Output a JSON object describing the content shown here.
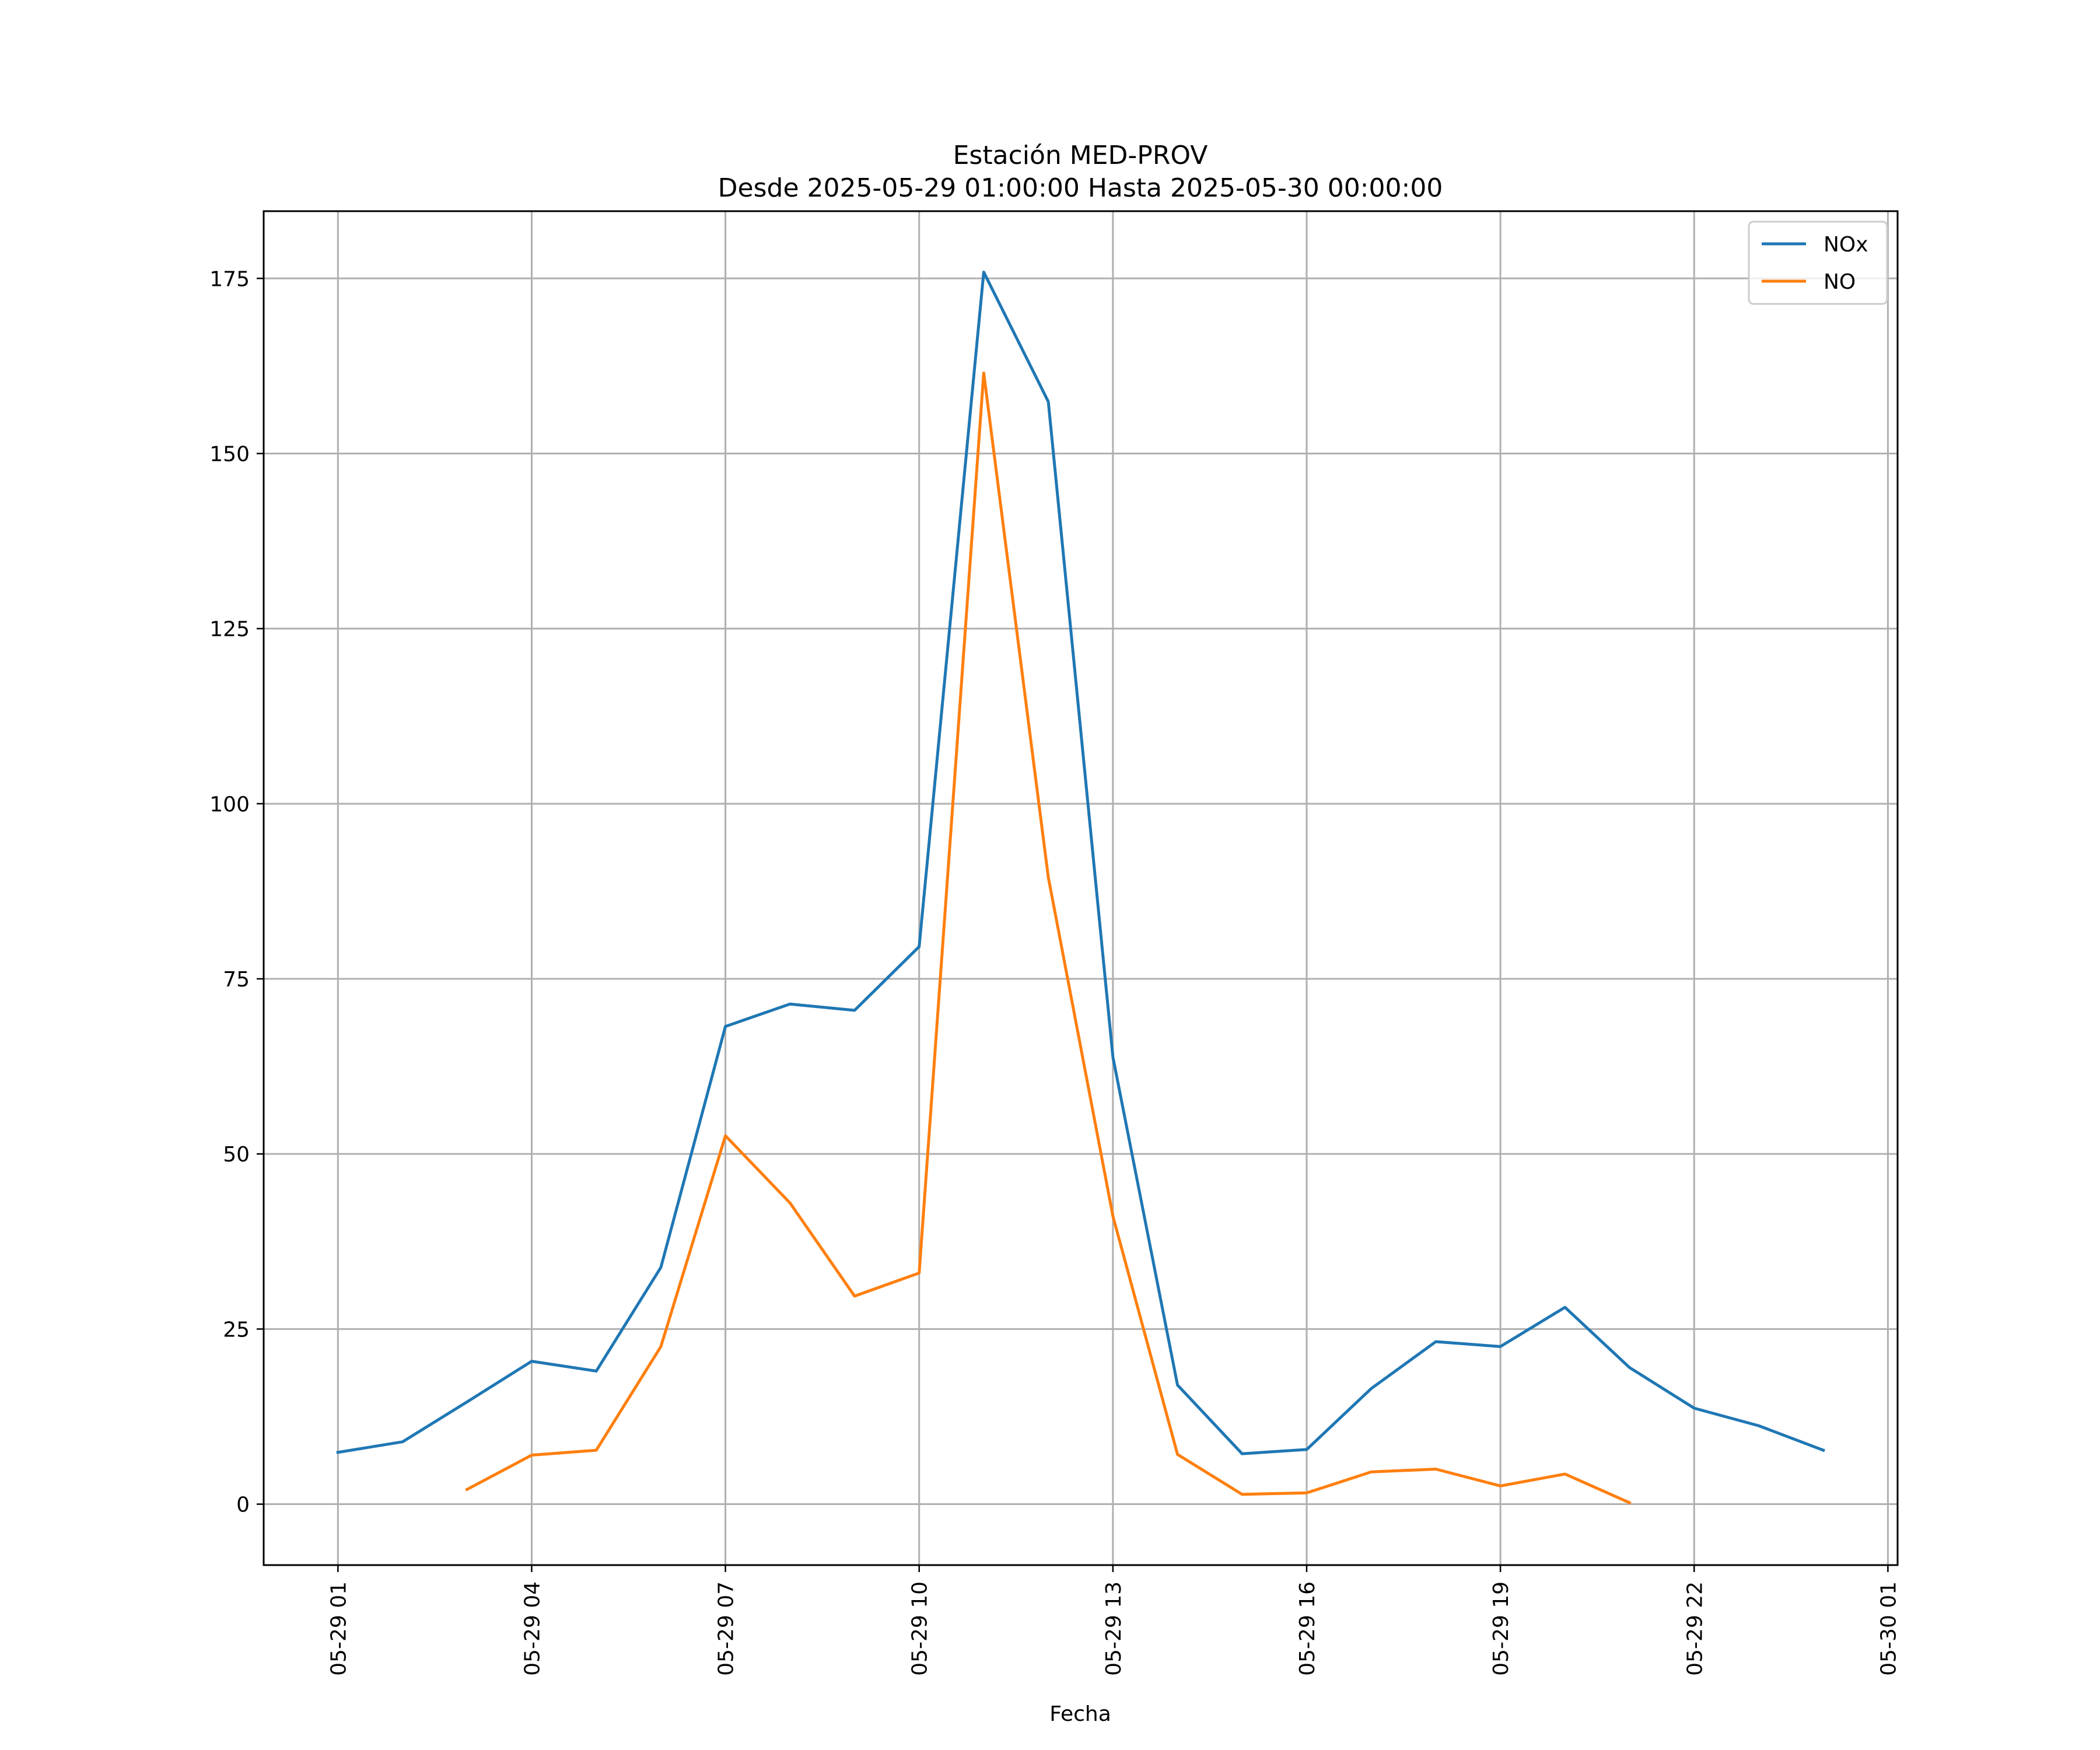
{
  "chart_data": {
    "type": "line",
    "title": "Estación MED-PROV",
    "subtitle": "Desde 2025-05-29 01:00:00 Hasta 2025-05-30 00:00:00",
    "xlabel": "Fecha",
    "ylabel": "",
    "x": [
      "2025-05-29 01:00",
      "2025-05-29 02:00",
      "2025-05-29 03:00",
      "2025-05-29 04:00",
      "2025-05-29 05:00",
      "2025-05-29 06:00",
      "2025-05-29 07:00",
      "2025-05-29 08:00",
      "2025-05-29 09:00",
      "2025-05-29 10:00",
      "2025-05-29 11:00",
      "2025-05-29 12:00",
      "2025-05-29 13:00",
      "2025-05-29 14:00",
      "2025-05-29 15:00",
      "2025-05-29 16:00",
      "2025-05-29 17:00",
      "2025-05-29 18:00",
      "2025-05-29 19:00",
      "2025-05-29 20:00",
      "2025-05-29 21:00",
      "2025-05-29 22:00",
      "2025-05-29 23:00",
      "2025-05-30 00:00"
    ],
    "series": [
      {
        "name": "NOx",
        "color": "#1f77b4",
        "values": [
          7.4,
          8.9,
          14.6,
          20.4,
          19.0,
          33.8,
          68.2,
          71.4,
          70.5,
          79.6,
          175.9,
          157.4,
          63.8,
          17.0,
          7.2,
          7.8,
          16.5,
          23.2,
          22.5,
          28.1,
          19.5,
          13.7,
          11.2,
          7.7
        ]
      },
      {
        "name": "NO",
        "color": "#ff7f0e",
        "values": [
          null,
          null,
          2.1,
          7.0,
          7.7,
          22.5,
          52.6,
          43.0,
          29.7,
          33.0,
          161.5,
          89.5,
          41.1,
          7.1,
          1.4,
          1.6,
          4.6,
          5.0,
          2.6,
          4.3,
          0.2,
          null,
          null,
          null
        ]
      }
    ],
    "xticks": [
      {
        "x": "2025-05-29 01:00",
        "label": "05-29 01"
      },
      {
        "x": "2025-05-29 04:00",
        "label": "05-29 04"
      },
      {
        "x": "2025-05-29 07:00",
        "label": "05-29 07"
      },
      {
        "x": "2025-05-29 10:00",
        "label": "05-29 10"
      },
      {
        "x": "2025-05-29 13:00",
        "label": "05-29 13"
      },
      {
        "x": "2025-05-29 16:00",
        "label": "05-29 16"
      },
      {
        "x": "2025-05-29 19:00",
        "label": "05-29 19"
      },
      {
        "x": "2025-05-29 22:00",
        "label": "05-29 22"
      },
      {
        "x": "2025-05-30 01:00",
        "label": "05-30 01"
      }
    ],
    "yticks": [
      0,
      25,
      50,
      75,
      100,
      125,
      150,
      175
    ],
    "xlim": [
      "2025-05-28 23:51",
      "2025-05-30 01:09"
    ],
    "ylim": [
      -8.7,
      184.6
    ],
    "grid": true,
    "legend_position": "top-right"
  }
}
